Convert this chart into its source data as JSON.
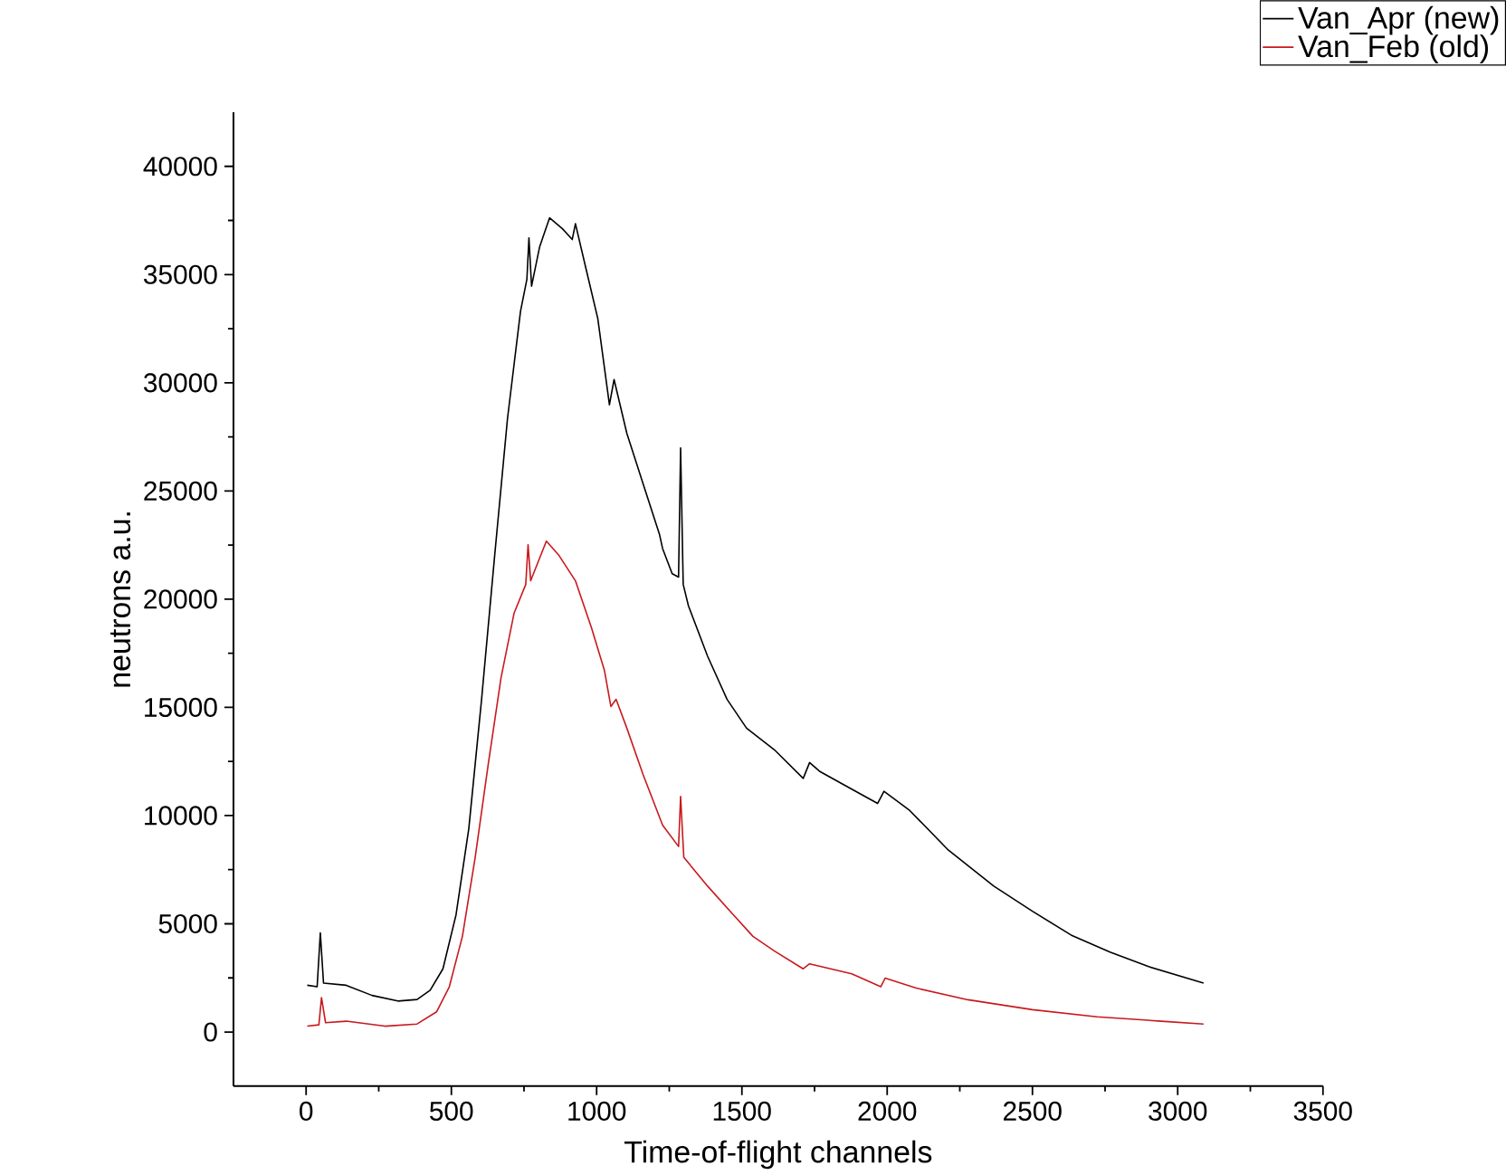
{
  "chart_data": {
    "type": "line",
    "xlabel": "Time-of-flight channels",
    "ylabel": "neutrons a.u.",
    "xlim": [
      -250,
      3500
    ],
    "ylim": [
      -2500,
      42500
    ],
    "xticks": [
      0,
      500,
      1000,
      1500,
      2000,
      2500,
      3000,
      3500
    ],
    "yticks": [
      0,
      5000,
      10000,
      15000,
      20000,
      25000,
      30000,
      35000,
      40000
    ],
    "legend": "top right",
    "grid": false,
    "marker": "none",
    "line_style": "solid",
    "series": [
      {
        "name": "Van_Apr (new)",
        "color": "#000000",
        "x": [
          4,
          38,
          49,
          60,
          138,
          227,
          316,
          382,
          427,
          471,
          516,
          560,
          604,
          649,
          693,
          738,
          760,
          767,
          776,
          804,
          838,
          882,
          916,
          927,
          960,
          1004,
          1044,
          1060,
          1104,
          1160,
          1216,
          1227,
          1260,
          1282,
          1289,
          1298,
          1316,
          1382,
          1449,
          1516,
          1611,
          1711,
          1733,
          1767,
          1878,
          1967,
          1989,
          2078,
          2211,
          2367,
          2500,
          2633,
          2767,
          2900,
          3089
        ],
        "values": [
          2160,
          2090,
          4580,
          2260,
          2160,
          1690,
          1430,
          1500,
          1930,
          2920,
          5410,
          9400,
          15370,
          22010,
          28320,
          33300,
          34790,
          36690,
          34460,
          36290,
          37620,
          37120,
          36620,
          37350,
          35460,
          32970,
          28980,
          30150,
          27660,
          25330,
          23010,
          22340,
          21180,
          21020,
          26990,
          20680,
          19690,
          17360,
          15370,
          14040,
          13050,
          11720,
          12450,
          12050,
          11220,
          10560,
          11120,
          10230,
          8400,
          6740,
          5580,
          4480,
          3690,
          3020,
          2260
        ]
      },
      {
        "name": "Van_Feb (old)",
        "color": "#c8191e",
        "x": [
          4,
          44,
          53,
          67,
          138,
          271,
          382,
          449,
          493,
          538,
          582,
          627,
          671,
          716,
          756,
          764,
          773,
          827,
          871,
          927,
          982,
          1027,
          1049,
          1067,
          1104,
          1160,
          1227,
          1282,
          1289,
          1300,
          1382,
          1471,
          1538,
          1611,
          1711,
          1733,
          1878,
          1978,
          1993,
          2100,
          2278,
          2500,
          2722,
          2944,
          3089
        ],
        "values": [
          270,
          330,
          1590,
          430,
          500,
          270,
          370,
          930,
          2090,
          4420,
          8070,
          12380,
          16370,
          19360,
          20680,
          22510,
          20850,
          22680,
          22010,
          20850,
          18690,
          16700,
          15040,
          15370,
          14040,
          11890,
          9560,
          8570,
          10890,
          8070,
          6740,
          5410,
          4420,
          3750,
          2920,
          3150,
          2690,
          2090,
          2490,
          2030,
          1490,
          1030,
          700,
          500,
          370
        ]
      }
    ]
  }
}
